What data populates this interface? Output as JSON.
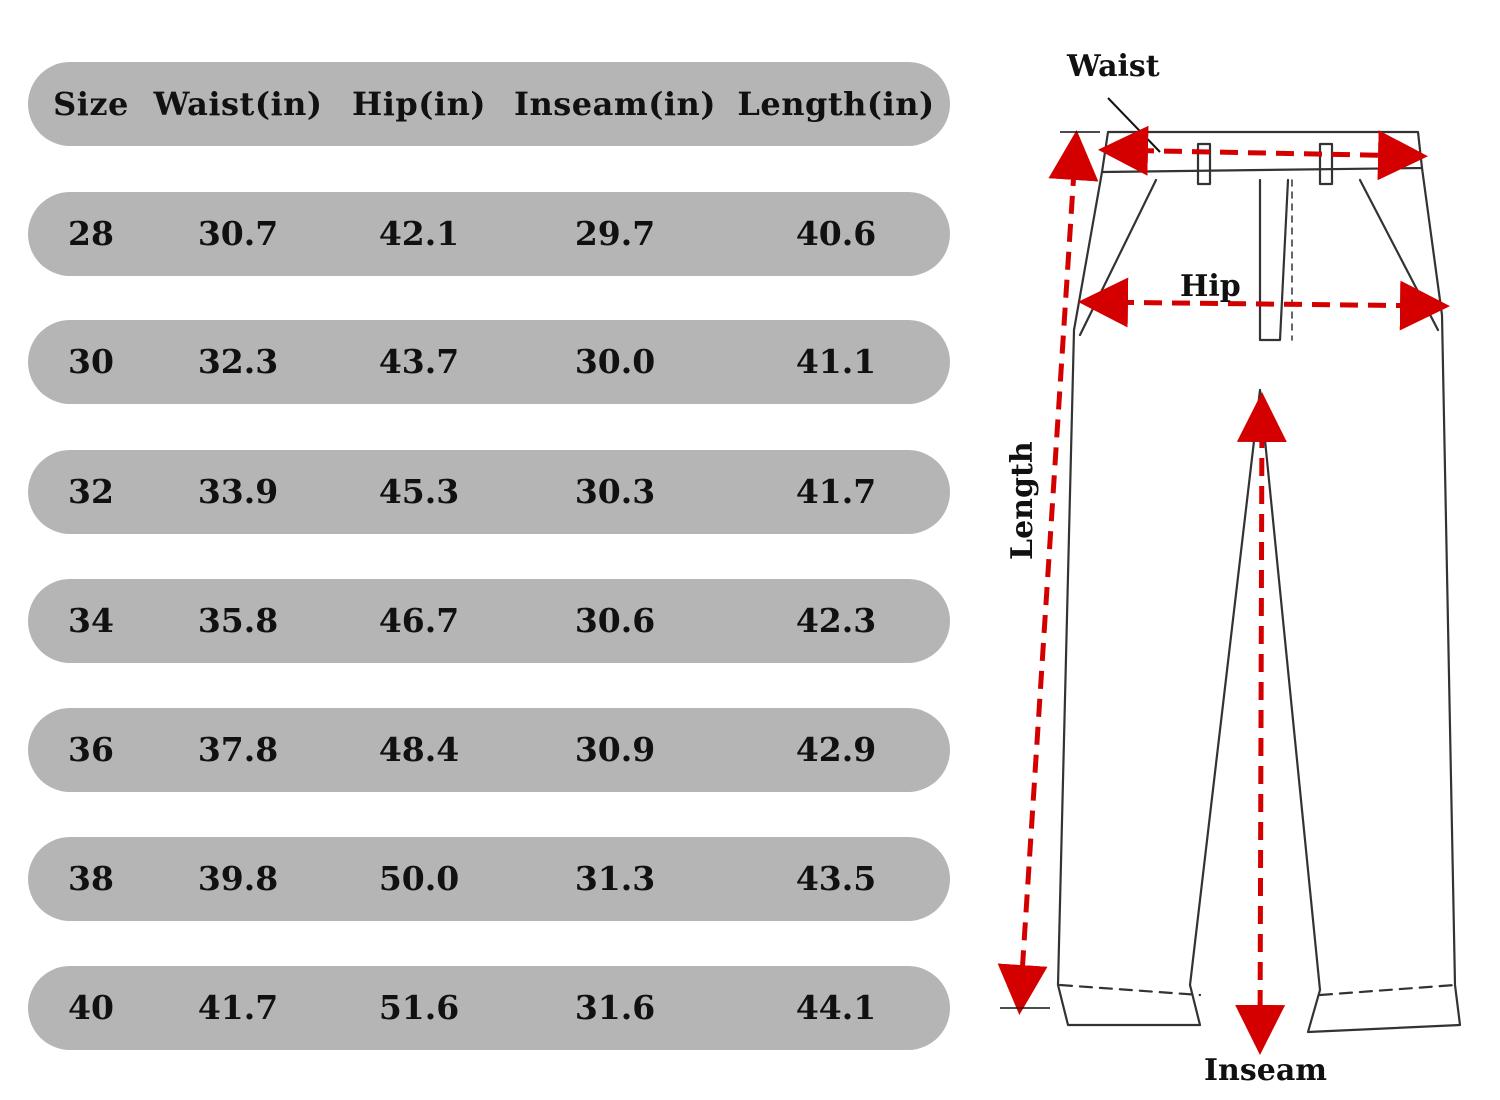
{
  "table": {
    "headers": [
      "Size",
      "Waist(in)",
      "Hip(in)",
      "Inseam(in)",
      "Length(in)"
    ],
    "rows": [
      [
        "28",
        "30.7",
        "42.1",
        "29.7",
        "40.6"
      ],
      [
        "30",
        "32.3",
        "43.7",
        "30.0",
        "41.1"
      ],
      [
        "32",
        "33.9",
        "45.3",
        "30.3",
        "41.7"
      ],
      [
        "34",
        "35.8",
        "46.7",
        "30.6",
        "42.3"
      ],
      [
        "36",
        "37.8",
        "48.4",
        "30.9",
        "42.9"
      ],
      [
        "38",
        "39.8",
        "50.0",
        "31.3",
        "43.5"
      ],
      [
        "40",
        "41.7",
        "51.6",
        "31.6",
        "44.1"
      ]
    ]
  },
  "diagram": {
    "labels": {
      "waist": "Waist",
      "hip": "Hip",
      "length": "Length",
      "inseam": "Inseam"
    }
  },
  "colors": {
    "row_background": "#b5b5b5",
    "measure_arrow": "#d40000",
    "outline": "#333333"
  }
}
